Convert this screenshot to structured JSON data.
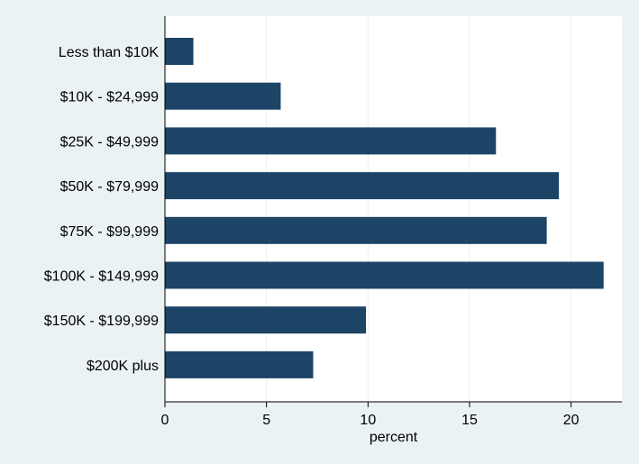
{
  "chart_data": {
    "type": "bar",
    "orientation": "horizontal",
    "categories": [
      "Less than $10K",
      "$10K - $24,999",
      "$25K - $49,999",
      "$50K - $79,999",
      "$75K - $99,999",
      "$100K - $149,999",
      "$150K - $199,999",
      "$200K plus"
    ],
    "values": [
      1.4,
      5.7,
      16.3,
      19.4,
      18.8,
      21.6,
      9.9,
      7.3
    ],
    "xlabel": "percent",
    "ylabel": "",
    "xlim": [
      0,
      22.5
    ],
    "xticks": [
      0,
      5,
      10,
      15,
      20
    ],
    "grid": true,
    "bar_color": "#1b4466",
    "plot_background": "#ffffff",
    "page_background": "#eaf2f3"
  }
}
